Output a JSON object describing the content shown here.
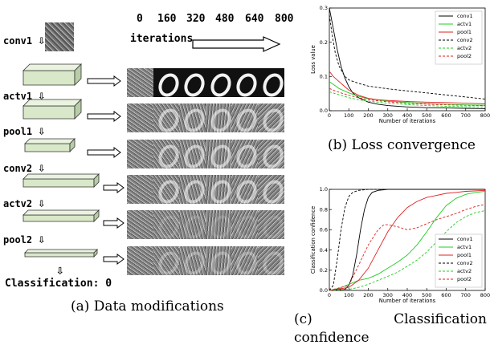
{
  "left": {
    "iterations_label": "iterations",
    "iteration_ticks": [
      "0",
      "160",
      "320",
      "480",
      "640",
      "800"
    ],
    "stages": [
      {
        "label": "conv1",
        "arrow": "⇩"
      },
      {
        "label": "actv1",
        "arrow": "⇩"
      },
      {
        "label": "pool1",
        "arrow": "⇩"
      },
      {
        "label": "conv2",
        "arrow": "⇩"
      },
      {
        "label": "actv2",
        "arrow": "⇩"
      },
      {
        "label": "pool2",
        "arrow": "⇩"
      }
    ],
    "final_arrow": "⇩",
    "classification": "Classification: 0",
    "caption": "(a) Data modifications"
  },
  "captions": {
    "b": "(b) Loss convergence",
    "c_prefix": "(c)",
    "c_word": "Classification",
    "c_line2": "confidence"
  },
  "chart_data": [
    {
      "type": "line",
      "id": "loss",
      "xlabel": "Number of iterations",
      "ylabel": "Loss value",
      "xlim": [
        0,
        800
      ],
      "ylim": [
        0,
        0.3
      ],
      "xticks": [
        0,
        100,
        200,
        300,
        400,
        500,
        600,
        700,
        800
      ],
      "yticks": [
        0,
        0.1,
        0.2,
        0.3
      ],
      "ytick_labels": [
        "0.0",
        "0.1",
        "0.2",
        "0.3"
      ],
      "legend_position": "top-right",
      "series": [
        {
          "name": "conv1",
          "color": "#000000",
          "dash": "solid",
          "x": [
            0,
            20,
            40,
            60,
            80,
            100,
            120,
            150,
            200,
            250,
            300,
            400,
            500,
            600,
            700,
            800
          ],
          "y": [
            0.3,
            0.24,
            0.18,
            0.13,
            0.095,
            0.07,
            0.052,
            0.038,
            0.025,
            0.019,
            0.015,
            0.011,
            0.009,
            0.008,
            0.007,
            0.006
          ]
        },
        {
          "name": "actv1",
          "color": "#22cc22",
          "dash": "solid",
          "x": [
            0,
            25,
            50,
            100,
            150,
            200,
            300,
            400,
            500,
            600,
            700,
            800
          ],
          "y": [
            0.085,
            0.075,
            0.065,
            0.052,
            0.042,
            0.035,
            0.028,
            0.024,
            0.021,
            0.019,
            0.017,
            0.016
          ]
        },
        {
          "name": "pool1",
          "color": "#dd2222",
          "dash": "solid",
          "x": [
            0,
            20,
            50,
            80,
            100,
            150,
            200,
            250,
            300,
            400,
            500,
            600,
            700,
            800
          ],
          "y": [
            0.115,
            0.1,
            0.085,
            0.07,
            0.06,
            0.045,
            0.036,
            0.032,
            0.03,
            0.027,
            0.025,
            0.024,
            0.022,
            0.02
          ]
        },
        {
          "name": "conv2",
          "color": "#000000",
          "dash": "dashed",
          "x": [
            0,
            15,
            30,
            50,
            80,
            100,
            150,
            200,
            300,
            400,
            500,
            600,
            700,
            800
          ],
          "y": [
            0.28,
            0.22,
            0.17,
            0.13,
            0.1,
            0.09,
            0.08,
            0.072,
            0.064,
            0.058,
            0.052,
            0.046,
            0.04,
            0.034
          ]
        },
        {
          "name": "actv2",
          "color": "#22cc22",
          "dash": "dashed",
          "x": [
            0,
            30,
            60,
            100,
            150,
            200,
            300,
            400,
            500,
            600,
            700,
            800
          ],
          "y": [
            0.055,
            0.05,
            0.045,
            0.038,
            0.032,
            0.028,
            0.022,
            0.018,
            0.015,
            0.013,
            0.012,
            0.011
          ]
        },
        {
          "name": "pool2",
          "color": "#dd2222",
          "dash": "dashed",
          "x": [
            0,
            30,
            60,
            100,
            150,
            200,
            300,
            400,
            500,
            600,
            700,
            800
          ],
          "y": [
            0.065,
            0.058,
            0.052,
            0.045,
            0.038,
            0.032,
            0.026,
            0.022,
            0.019,
            0.017,
            0.016,
            0.015
          ]
        }
      ]
    },
    {
      "type": "line",
      "id": "confidence",
      "xlabel": "Number of iterations",
      "ylabel": "Classification confidence",
      "xlim": [
        0,
        800
      ],
      "ylim": [
        0,
        1.0
      ],
      "xticks": [
        0,
        100,
        200,
        300,
        400,
        500,
        600,
        700,
        800
      ],
      "yticks": [
        0,
        0.2,
        0.4,
        0.6,
        0.8,
        1.0
      ],
      "ytick_labels": [
        "0.0",
        "0.2",
        "0.4",
        "0.6",
        "0.8",
        "1.0"
      ],
      "legend_position": "bottom-right",
      "series": [
        {
          "name": "conv1",
          "color": "#000000",
          "dash": "solid",
          "x": [
            0,
            80,
            100,
            120,
            140,
            160,
            180,
            200,
            220,
            250,
            300,
            800
          ],
          "y": [
            0,
            0.01,
            0.05,
            0.15,
            0.35,
            0.6,
            0.8,
            0.92,
            0.97,
            0.99,
            1.0,
            1.0
          ]
        },
        {
          "name": "actv1",
          "color": "#22cc22",
          "dash": "solid",
          "x": [
            0,
            50,
            100,
            150,
            200,
            250,
            300,
            350,
            400,
            450,
            500,
            550,
            600,
            650,
            700,
            750,
            800
          ],
          "y": [
            0,
            0.02,
            0.06,
            0.1,
            0.12,
            0.16,
            0.22,
            0.28,
            0.35,
            0.45,
            0.58,
            0.72,
            0.84,
            0.91,
            0.95,
            0.97,
            0.98
          ]
        },
        {
          "name": "pool1",
          "color": "#dd2222",
          "dash": "solid",
          "x": [
            0,
            100,
            150,
            200,
            250,
            300,
            350,
            400,
            450,
            500,
            550,
            600,
            650,
            700,
            800
          ],
          "y": [
            0,
            0.03,
            0.1,
            0.22,
            0.4,
            0.58,
            0.72,
            0.82,
            0.88,
            0.92,
            0.94,
            0.96,
            0.97,
            0.98,
            0.99
          ]
        },
        {
          "name": "conv2",
          "color": "#000000",
          "dash": "dashed",
          "x": [
            0,
            20,
            40,
            60,
            80,
            100,
            120,
            150,
            200,
            800
          ],
          "y": [
            0,
            0.05,
            0.3,
            0.6,
            0.82,
            0.93,
            0.97,
            0.99,
            1.0,
            1.0
          ]
        },
        {
          "name": "actv2",
          "color": "#22cc22",
          "dash": "dashed",
          "x": [
            0,
            100,
            150,
            200,
            250,
            300,
            350,
            400,
            450,
            500,
            550,
            600,
            650,
            700,
            750,
            800
          ],
          "y": [
            0,
            0.01,
            0.03,
            0.06,
            0.1,
            0.14,
            0.18,
            0.24,
            0.3,
            0.38,
            0.48,
            0.58,
            0.67,
            0.73,
            0.77,
            0.79
          ]
        },
        {
          "name": "pool2",
          "color": "#dd2222",
          "dash": "dashed",
          "x": [
            0,
            100,
            150,
            200,
            250,
            280,
            300,
            350,
            400,
            450,
            500,
            550,
            600,
            650,
            700,
            750,
            800
          ],
          "y": [
            0,
            0.05,
            0.25,
            0.45,
            0.6,
            0.65,
            0.65,
            0.63,
            0.6,
            0.62,
            0.66,
            0.7,
            0.73,
            0.76,
            0.8,
            0.83,
            0.85
          ]
        }
      ]
    }
  ]
}
